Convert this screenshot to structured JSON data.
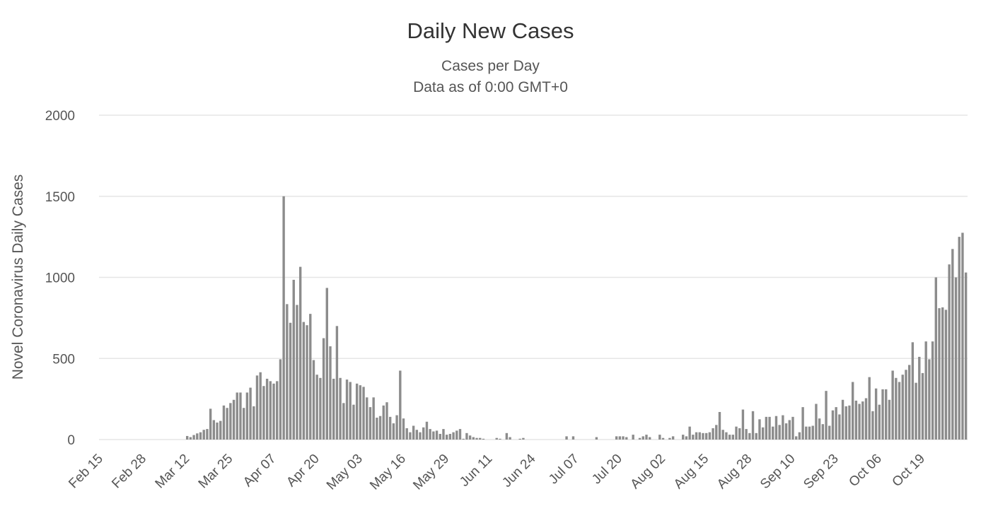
{
  "chart_data": {
    "type": "bar",
    "title": "Daily New Cases",
    "subtitle": "Cases per Day",
    "subtitle2": "Data as of 0:00 GMT+0",
    "xlabel": "",
    "ylabel": "Novel Coronavirus Daily Cases",
    "ylim": [
      0,
      2000
    ],
    "yticks": [
      0,
      500,
      1000,
      1500,
      2000
    ],
    "grid": true,
    "bar_color": "#8c8c8c",
    "grid_color": "#e6e6e6",
    "x_start": "Feb 15",
    "x_end": "Oct 19",
    "xtick_labels": [
      "Feb 15",
      "Feb 28",
      "Mar 12",
      "Mar 25",
      "Apr 07",
      "Apr 20",
      "May 03",
      "May 16",
      "May 29",
      "Jun 11",
      "Jun 24",
      "Jul 07",
      "Jul 20",
      "Aug 02",
      "Aug 15",
      "Aug 28",
      "Sep 10",
      "Sep 23",
      "Oct 06",
      "Oct 19"
    ],
    "values": [
      0,
      0,
      0,
      0,
      0,
      0,
      0,
      0,
      0,
      0,
      0,
      0,
      0,
      0,
      0,
      0,
      0,
      0,
      0,
      0,
      0,
      0,
      0,
      0,
      0,
      0,
      22,
      15,
      28,
      38,
      45,
      60,
      65,
      190,
      120,
      105,
      115,
      210,
      195,
      225,
      245,
      290,
      290,
      195,
      290,
      320,
      205,
      395,
      415,
      330,
      375,
      360,
      345,
      360,
      495,
      1500,
      835,
      720,
      985,
      830,
      1065,
      725,
      705,
      775,
      490,
      400,
      380,
      625,
      935,
      575,
      375,
      700,
      380,
      225,
      370,
      355,
      215,
      345,
      335,
      325,
      260,
      200,
      260,
      135,
      145,
      210,
      230,
      140,
      100,
      150,
      425,
      130,
      70,
      45,
      85,
      60,
      45,
      75,
      110,
      65,
      50,
      55,
      35,
      65,
      30,
      35,
      45,
      55,
      65,
      5,
      40,
      25,
      15,
      10,
      10,
      5,
      0,
      0,
      0,
      10,
      5,
      0,
      40,
      15,
      0,
      0,
      5,
      10,
      0,
      0,
      0,
      0,
      0,
      0,
      0,
      0,
      0,
      0,
      0,
      0,
      20,
      0,
      20,
      0,
      0,
      0,
      0,
      0,
      0,
      15,
      0,
      0,
      0,
      0,
      0,
      20,
      20,
      20,
      15,
      0,
      30,
      0,
      10,
      20,
      30,
      15,
      0,
      0,
      30,
      10,
      0,
      10,
      20,
      0,
      0,
      30,
      20,
      80,
      30,
      45,
      45,
      40,
      40,
      45,
      70,
      90,
      170,
      60,
      45,
      30,
      30,
      80,
      70,
      185,
      65,
      40,
      175,
      40,
      125,
      75,
      140,
      140,
      80,
      145,
      90,
      150,
      100,
      120,
      140,
      20,
      45,
      200,
      80,
      80,
      85,
      220,
      130,
      95,
      300,
      85,
      180,
      200,
      155,
      245,
      205,
      210,
      355,
      240,
      220,
      235,
      255,
      385,
      175,
      315,
      215,
      310,
      310,
      245,
      425,
      380,
      355,
      400,
      430,
      460,
      600,
      350,
      510,
      410,
      605,
      495,
      605,
      1000,
      810,
      815,
      800,
      1080,
      1175,
      1000,
      1250,
      1275,
      1030
    ]
  }
}
